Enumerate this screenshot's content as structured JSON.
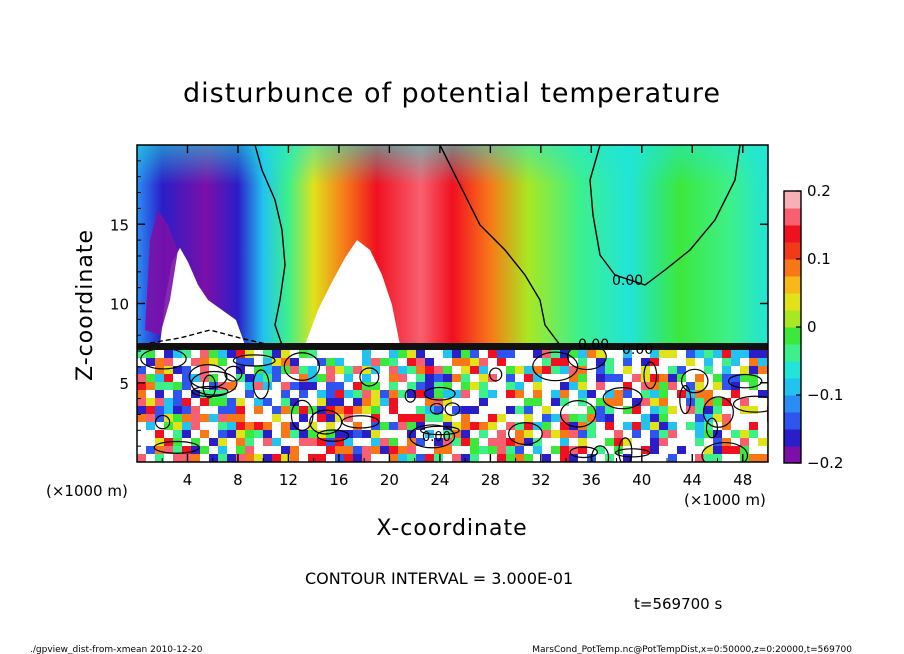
{
  "chart_data": {
    "type": "heatmap",
    "title": "disturbunce of potential temperature",
    "xlabel": "X-coordinate",
    "ylabel": "Z-coordinate",
    "x_unit_label": "(×1000 m)",
    "y_unit_label": "(×1000 m)",
    "xlim": [
      0,
      50
    ],
    "ylim": [
      0,
      20
    ],
    "x_ticks": [
      "4",
      "8",
      "12",
      "16",
      "20",
      "24",
      "28",
      "32",
      "36",
      "40",
      "44",
      "48"
    ],
    "y_ticks": [
      "5",
      "10",
      "15"
    ],
    "colorbar": {
      "range": [
        -0.2,
        0.2
      ],
      "tick_labels": [
        "0.2",
        "0.1",
        "0",
        "−0.1",
        "−0.2"
      ],
      "tick_values": [
        0.2,
        0.1,
        0,
        -0.1,
        -0.2
      ],
      "colors": [
        "#7b0fa8",
        "#2a1ec8",
        "#2f55f0",
        "#2a8df5",
        "#22c3f0",
        "#20e5d8",
        "#3ef08a",
        "#3ce83c",
        "#a8e822",
        "#e0e21a",
        "#f8b818",
        "#f87818",
        "#f03a18",
        "#f01020",
        "#f86070",
        "#f8b0b8"
      ]
    },
    "contour_interval_text": "CONTOUR INTERVAL = 3.000E-01",
    "contour_labels": [
      "0.00",
      "0.00",
      "0.00",
      "0.00"
    ],
    "time_text": "t=569700 s"
  },
  "footer": {
    "left": "./gpview_dist-from-xmean  2010-12-20",
    "right": "MarsCond_PotTemp.nc@PotTempDist,x=0:50000,z=0:20000,t=569700"
  }
}
